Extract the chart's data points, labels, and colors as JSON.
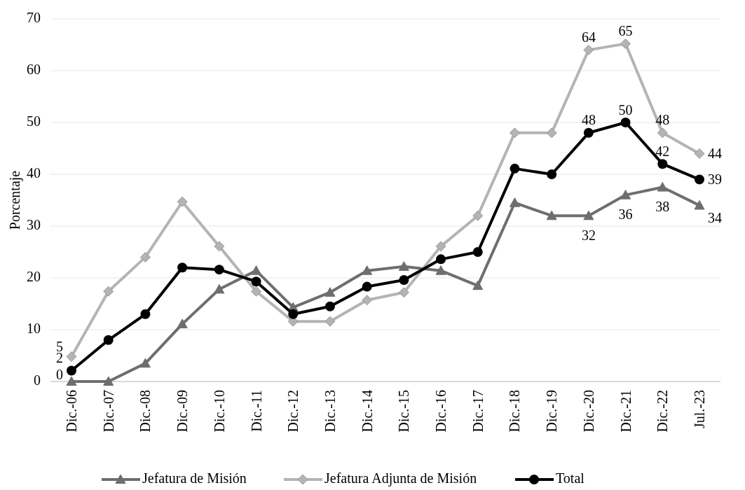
{
  "chart_data": {
    "type": "line",
    "ylabel": "Porcentaje",
    "categories": [
      "Dic.-06",
      "Dic.-07",
      "Dic.-08",
      "Dic.-09",
      "Dic.-10",
      "Dic.-11",
      "Dic.-12",
      "Dic.-13",
      "Dic.-14",
      "Dic.-15",
      "Dic.-16",
      "Dic.-17",
      "Dic.-18",
      "Dic.-19",
      "Dic.-20",
      "Dic.-21",
      "Dic.-22",
      "Jul.-23"
    ],
    "series": [
      {
        "name": "Jefatura de Misión",
        "color": "#6e6e6e",
        "marker": "triangle",
        "values": [
          0,
          0,
          3.5,
          11.1,
          17.8,
          21.4,
          14.3,
          17.2,
          21.4,
          22.2,
          21.4,
          18.5,
          34.5,
          32,
          32,
          36,
          37.5,
          34
        ],
        "value_labels": [
          "0",
          null,
          null,
          null,
          null,
          null,
          null,
          null,
          null,
          null,
          null,
          null,
          null,
          null,
          "32",
          "36",
          "38",
          "34"
        ]
      },
      {
        "name": "Jefatura Adjunta de Misión",
        "color": "#b4b4b4",
        "marker": "diamond",
        "values": [
          4.8,
          17.4,
          24,
          34.7,
          26.1,
          17.4,
          11.6,
          11.6,
          15.7,
          17.2,
          26.1,
          32,
          48,
          48,
          64,
          65.2,
          48,
          44
        ],
        "value_labels": [
          "5",
          null,
          null,
          null,
          null,
          null,
          null,
          null,
          null,
          null,
          null,
          null,
          null,
          null,
          "64",
          "65",
          "48",
          "44"
        ]
      },
      {
        "name": "Total",
        "color": "#000000",
        "marker": "circle",
        "values": [
          2.1,
          8,
          13,
          22,
          21.6,
          19.3,
          13,
          14.5,
          18.3,
          19.6,
          23.6,
          25,
          41.1,
          40,
          48,
          50,
          42,
          39
        ],
        "value_labels": [
          "2",
          null,
          null,
          null,
          null,
          null,
          null,
          null,
          null,
          null,
          null,
          null,
          null,
          null,
          "48",
          "50",
          "42",
          "39"
        ]
      }
    ],
    "ylim": [
      0,
      70
    ],
    "yticks": [
      0,
      10,
      20,
      30,
      40,
      50,
      60,
      70
    ],
    "grid": "y",
    "legend": "bottom"
  }
}
